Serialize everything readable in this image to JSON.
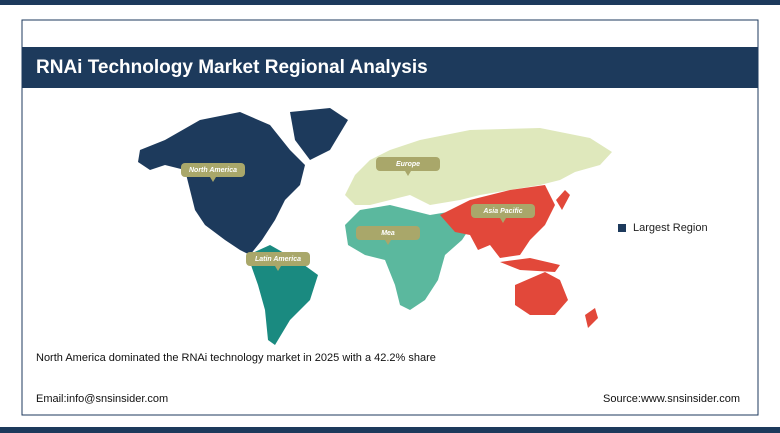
{
  "header": {
    "title": "RNAi Technology Market Regional Analysis"
  },
  "regions": [
    {
      "label": "North America"
    },
    {
      "label": "Europe"
    },
    {
      "label": "Asia Pacific"
    },
    {
      "label": "Mea"
    },
    {
      "label": "Latin America"
    }
  ],
  "legend": {
    "label": "Largest Region"
  },
  "caption": "North America dominated the RNAi technology market in 2025 with a 42.2% share",
  "footer": {
    "email": "Email:info@snsinsider.com",
    "source": "Source:www.snsinsider.com"
  }
}
